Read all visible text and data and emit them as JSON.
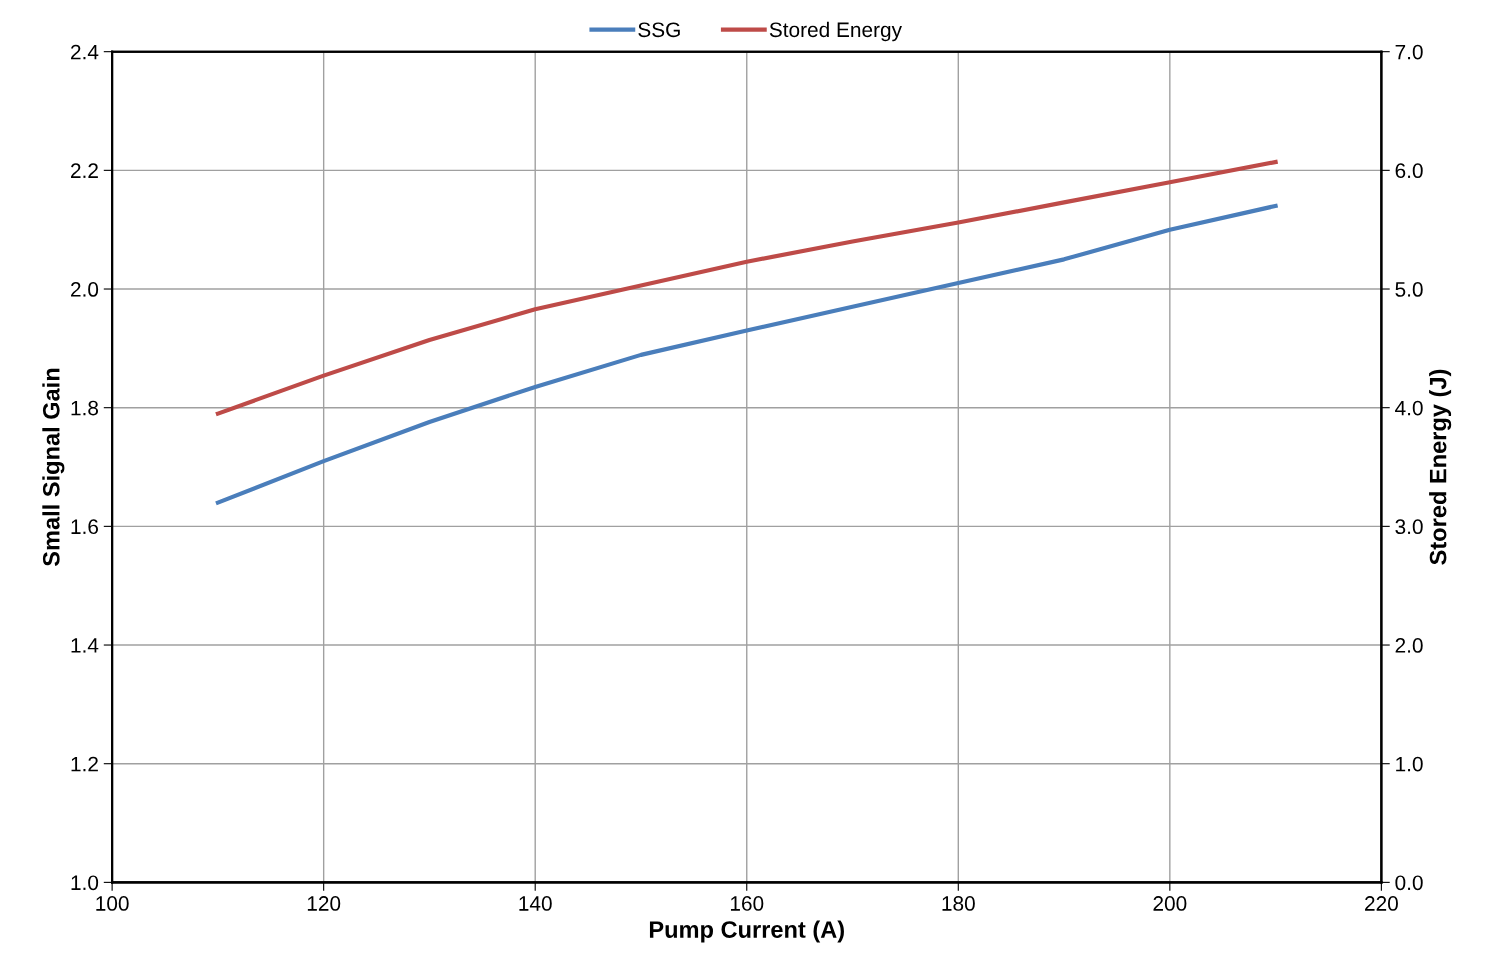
{
  "chart_data": {
    "type": "line",
    "xlabel": "Pump Current (A)",
    "ylabel": "Small Signal Gain",
    "y2label": "Stored Energy (J)",
    "x": [
      110,
      120,
      130,
      140,
      150,
      160,
      170,
      180,
      190,
      200,
      210
    ],
    "series": [
      {
        "name": "SSG",
        "color": "#4a7ebb",
        "values": [
          1.64,
          1.71,
          1.776,
          1.835,
          1.889,
          1.93,
          1.97,
          2.01,
          2.05,
          2.1,
          2.14
        ]
      },
      {
        "name": "Stored Energy",
        "color": "#be4b48",
        "axis": "y2",
        "values": [
          3.95,
          4.27,
          4.57,
          4.83,
          5.03,
          5.23,
          5.4,
          5.56,
          5.73,
          5.9,
          6.07
        ]
      }
    ],
    "xlim": [
      100,
      220
    ],
    "xticks": [
      100,
      120,
      140,
      160,
      180,
      200,
      220
    ],
    "ylim": [
      1.0,
      2.4
    ],
    "yticks": [
      {
        "value": 1.0,
        "label": "1.0"
      },
      {
        "value": 1.2,
        "label": "1.2"
      },
      {
        "value": 1.4,
        "label": "1.4"
      },
      {
        "value": 1.6,
        "label": "1.6"
      },
      {
        "value": 1.8,
        "label": "1.8"
      },
      {
        "value": 2.0,
        "label": "2.0"
      },
      {
        "value": 2.2,
        "label": "2.2"
      },
      {
        "value": 2.4,
        "label": "2.4"
      }
    ],
    "y2lim": [
      0,
      7
    ],
    "y2ticks": [
      {
        "value": 0,
        "label": "0.0"
      },
      {
        "value": 1,
        "label": "1.0"
      },
      {
        "value": 2,
        "label": "2.0"
      },
      {
        "value": 3,
        "label": "3.0"
      },
      {
        "value": 4,
        "label": "4.0"
      },
      {
        "value": 5,
        "label": "5.0"
      },
      {
        "value": 6,
        "label": "6.0"
      },
      {
        "value": 7,
        "label": "7.0"
      }
    ],
    "grid": true,
    "legend": "top",
    "marker": "none",
    "line_style": "solid"
  }
}
